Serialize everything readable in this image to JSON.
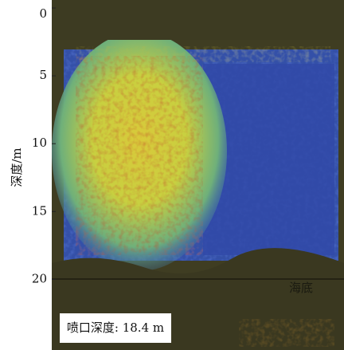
{
  "chart_data": {
    "type": "image",
    "ylabel": "深度/m",
    "ylim": [
      0,
      25.2
    ],
    "yticks": [
      0,
      5,
      10,
      15,
      20
    ],
    "y_inverted": true,
    "annotations": [
      "海底",
      "喷口深度: 18.4 m"
    ]
  }
}
